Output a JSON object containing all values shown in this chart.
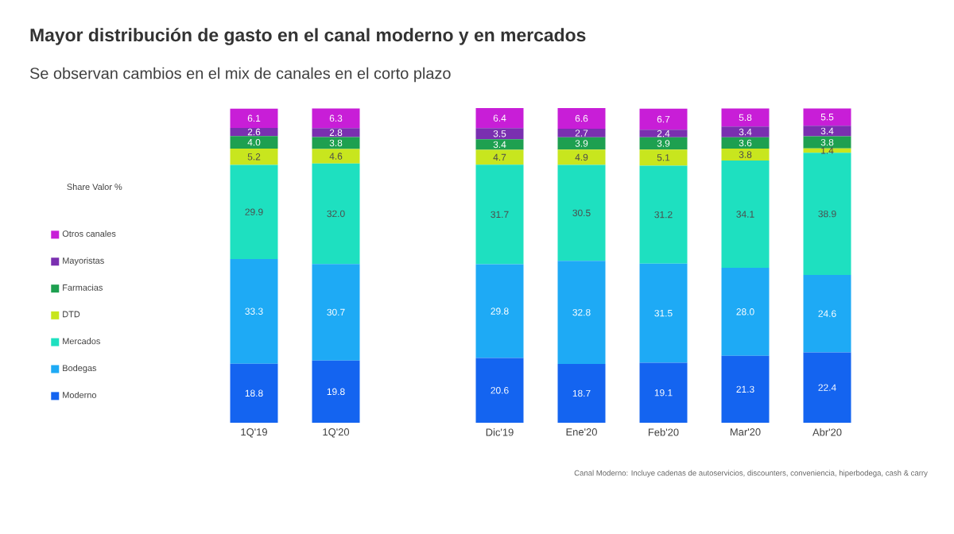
{
  "chart_data": {
    "type": "bar",
    "stacked": true,
    "legend": "left",
    "title": "Mayor distribución de gasto en el canal moderno y en mercados",
    "subtitle": "Se observan cambios en el mix de canales en el corto plazo",
    "legend_title": "Share Valor %",
    "annotations": [
      "Canal Moderno: Incluye cadenas de autoservicios, discounters, conveniencia, hiperbodega, cash & carry"
    ],
    "categories": [
      "1Q'19",
      "1Q'20",
      null,
      "Dic'19",
      "Ene'20",
      "Feb'20",
      "Mar'20",
      "Abr'20"
    ],
    "series": [
      {
        "name": "Moderno",
        "color": "#1464f0",
        "values": [
          18.8,
          19.8,
          null,
          20.6,
          18.7,
          19.1,
          21.3,
          22.4
        ],
        "value_labels": [
          "18.8",
          "19.8",
          null,
          "20.6",
          "18.7",
          "19.1",
          "21.3",
          "22.4"
        ]
      },
      {
        "name": "Bodegas",
        "color": "#1eaaf5",
        "values": [
          33.3,
          30.7,
          null,
          29.8,
          32.8,
          31.5,
          28.0,
          24.6
        ],
        "value_labels": [
          "33.3",
          "30.7",
          null,
          "29.8",
          "32.8",
          "31.5",
          "28.0",
          "24.6"
        ]
      },
      {
        "name": "Mercados",
        "color": "#1ee0c0",
        "values": [
          29.9,
          32.0,
          null,
          31.7,
          30.5,
          31.2,
          34.1,
          38.9
        ],
        "value_labels": [
          "29.9",
          "32.0",
          null,
          "31.7",
          "30.5",
          "31.2",
          "34.1",
          "38.9"
        ]
      },
      {
        "name": "DTD",
        "color": "#c8e61e",
        "values": [
          5.2,
          4.6,
          null,
          4.7,
          4.9,
          5.1,
          3.8,
          1.4
        ],
        "value_labels": [
          "5.2",
          "4.6",
          null,
          "4.7",
          "4.9",
          "5.1",
          "3.8",
          "1.4"
        ]
      },
      {
        "name": "Farmacias",
        "color": "#1ea050",
        "values": [
          4.0,
          3.8,
          null,
          3.4,
          3.9,
          3.9,
          3.6,
          3.8
        ],
        "value_labels": [
          "4.0",
          "3.8",
          null,
          "3.4",
          "3.9",
          "3.9",
          "3.6",
          "3.8"
        ]
      },
      {
        "name": "Mayoristas",
        "color": "#7a2fb0",
        "values": [
          2.6,
          2.8,
          null,
          3.5,
          2.7,
          2.4,
          3.4,
          3.4
        ],
        "value_labels": [
          "2.6",
          "2.8",
          null,
          "3.5",
          "2.7",
          "2.4",
          "3.4",
          "3.4"
        ]
      },
      {
        "name": "Otros canales",
        "color": "#c81ed7",
        "values": [
          6.1,
          6.3,
          null,
          6.4,
          6.6,
          6.7,
          5.8,
          5.5
        ],
        "value_labels": [
          "6.1",
          "6.3",
          null,
          "6.4",
          "6.6",
          "6.7",
          "5.8",
          "5.5"
        ]
      }
    ]
  }
}
